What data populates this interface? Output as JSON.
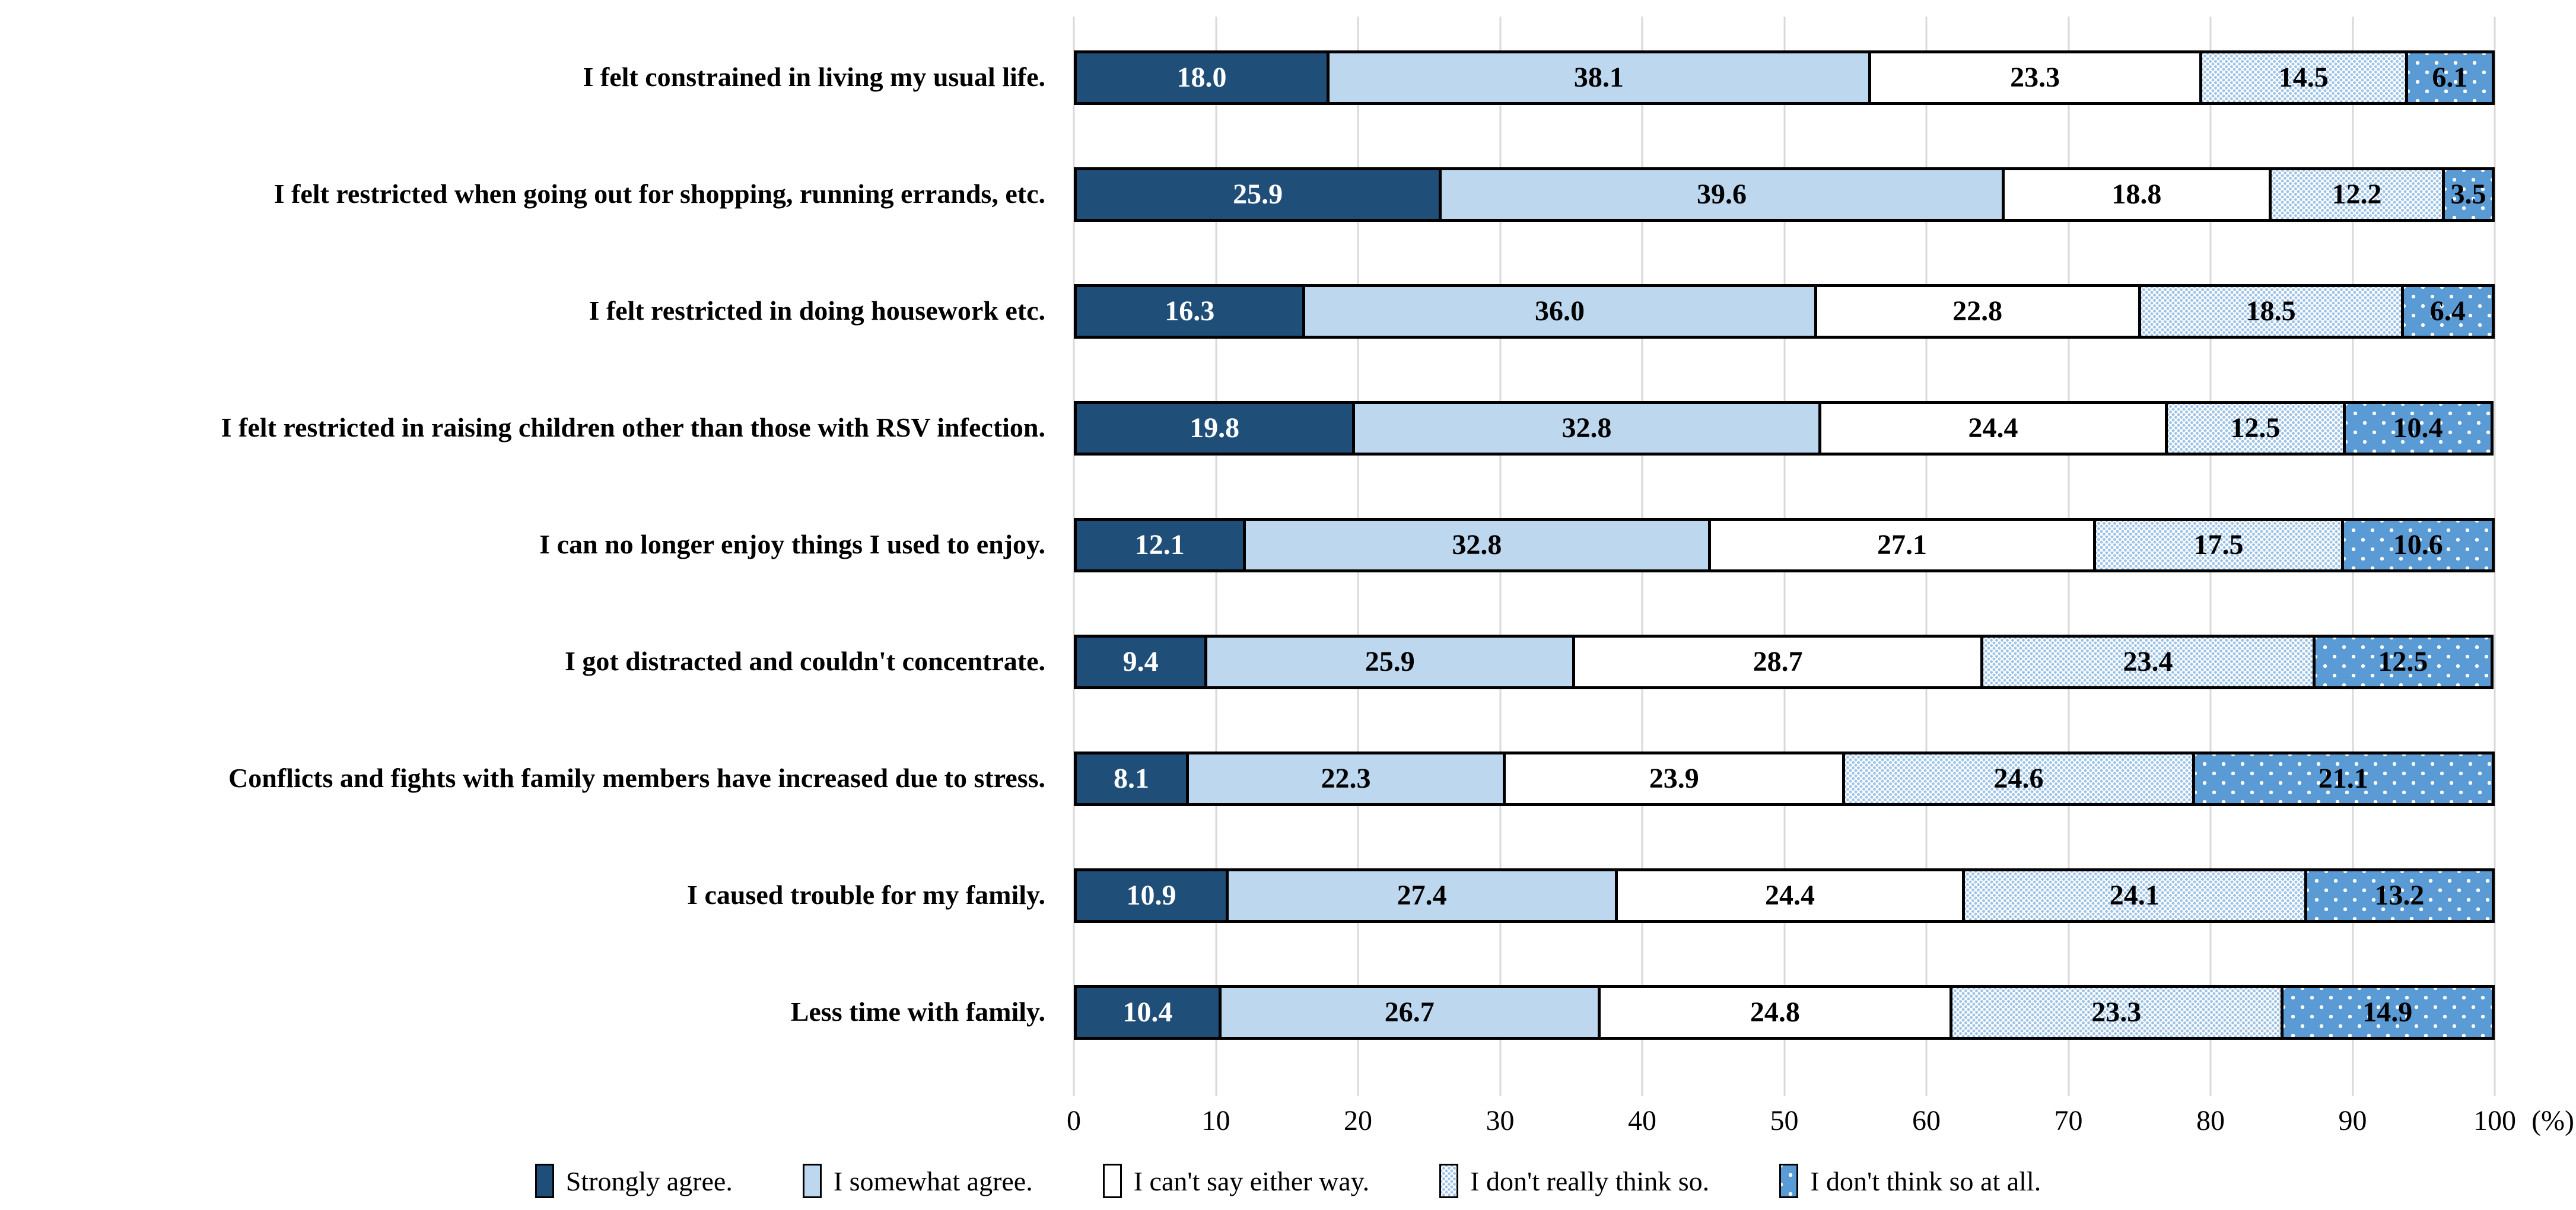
{
  "chart_data": {
    "type": "bar",
    "stacked": true,
    "orientation": "horizontal",
    "title": "",
    "xlabel": "",
    "ylabel": "",
    "xlim": [
      0,
      100
    ],
    "grid": true,
    "gridline_color": "#D9D9D9",
    "x_ticks": [
      0,
      10,
      20,
      30,
      40,
      50,
      60,
      70,
      80,
      90,
      100
    ],
    "x_axis_suffix": "(%)",
    "legend_position": "bottom",
    "categories": [
      "I felt constrained in living my usual life.",
      "I felt restricted when going out for shopping, running errands, etc.",
      "I felt restricted in doing housework etc.",
      "I felt restricted in raising children other than those with RSV infection.",
      "I can no longer enjoy things I used to enjoy.",
      "I got distracted and couldn't concentrate.",
      "Conflicts and fights with family members have increased due to stress.",
      "I caused trouble for my family.",
      "Less time with family."
    ],
    "series": [
      {
        "name": "Strongly agree.",
        "color": "#1F4E79",
        "pattern": "solid",
        "label_color": "#FFFFFF",
        "values": [
          18.0,
          25.9,
          16.3,
          19.8,
          12.1,
          9.4,
          8.1,
          10.9,
          10.4
        ]
      },
      {
        "name": "I somewhat agree.",
        "color": "#BDD7EE",
        "pattern": "solid",
        "label_color": "#000000",
        "values": [
          38.1,
          39.6,
          36.0,
          32.8,
          32.8,
          25.9,
          22.3,
          27.4,
          26.7
        ]
      },
      {
        "name": "I can't say either way.",
        "color": "#FFFFFF",
        "pattern": "solid",
        "label_color": "#000000",
        "values": [
          23.3,
          18.8,
          22.8,
          24.4,
          27.1,
          28.7,
          23.9,
          24.4,
          24.8
        ]
      },
      {
        "name": "I don't really think so.",
        "color": "#9DC3E6",
        "pattern": "dots-light",
        "label_color": "#000000",
        "values": [
          14.5,
          12.2,
          18.5,
          12.5,
          17.5,
          23.4,
          24.6,
          24.1,
          23.3
        ]
      },
      {
        "name": "I don't think so at all.",
        "color": "#5B9BD5",
        "pattern": "dots-white",
        "label_color": "#000000",
        "values": [
          6.1,
          3.5,
          6.4,
          10.4,
          10.6,
          12.5,
          21.1,
          13.2,
          14.9
        ]
      }
    ]
  }
}
